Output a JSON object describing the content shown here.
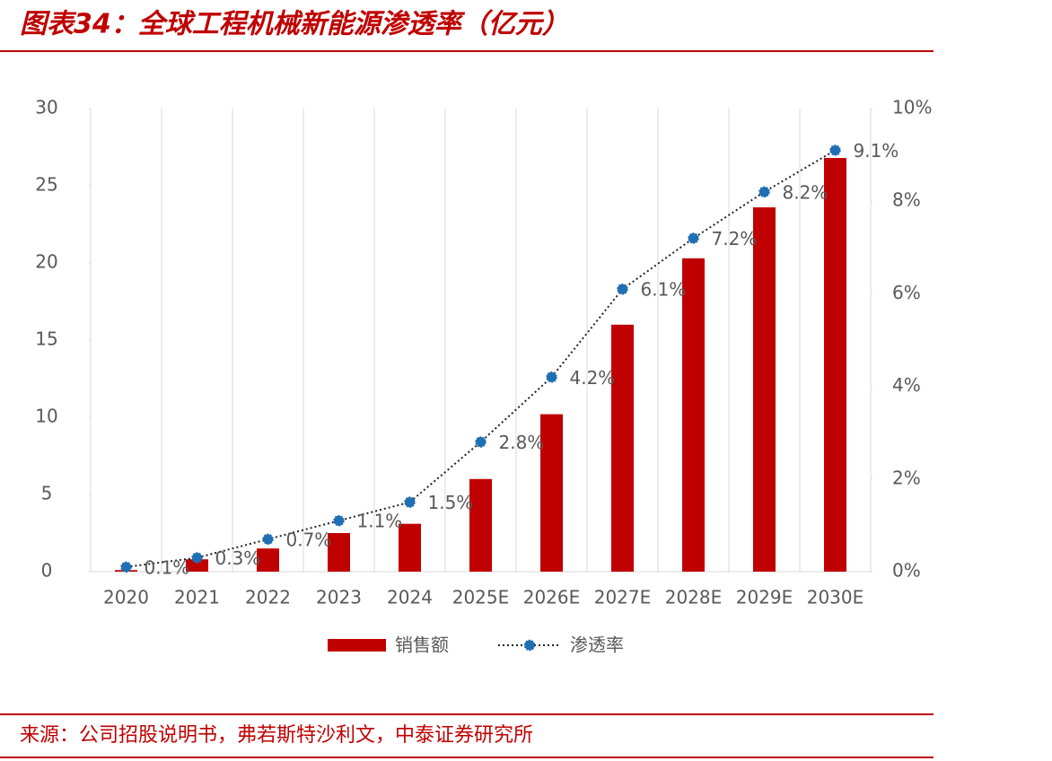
{
  "title": "图表34：全球工程机械新能源渗透率（亿元）",
  "source": "来源：公司招股说明书，弗若斯特沙利文，中泰证券研究所",
  "chart_data": {
    "type": "bar-line",
    "categories": [
      "2020",
      "2021",
      "2022",
      "2023",
      "2024",
      "2025E",
      "2026E",
      "2027E",
      "2028E",
      "2029E",
      "2030E"
    ],
    "series": [
      {
        "name": "销售额",
        "type": "bar",
        "color": "#c00000",
        "values": [
          0.1,
          0.8,
          1.5,
          2.5,
          3.1,
          6.0,
          10.2,
          16.0,
          20.3,
          23.6,
          26.8
        ]
      },
      {
        "name": "渗透率",
        "type": "line",
        "axis": "y2",
        "color": "#1f6fb5",
        "values": [
          0.1,
          0.3,
          0.7,
          1.1,
          1.5,
          2.8,
          4.2,
          6.1,
          7.2,
          8.2,
          9.1
        ],
        "value_labels": [
          "0.1%",
          "0.3%",
          "0.7%",
          "1.1%",
          "1.5%",
          "2.8%",
          "4.2%",
          "6.1%",
          "7.2%",
          "8.2%",
          "9.1%"
        ]
      }
    ],
    "ylim": [
      0,
      30
    ],
    "yticks": [
      0,
      5,
      10,
      15,
      20,
      25,
      30
    ],
    "y2lim": [
      0,
      10
    ],
    "y2ticks": [
      {
        "value": 0,
        "label": "0%"
      },
      {
        "value": 2,
        "label": "2%"
      },
      {
        "value": 4,
        "label": "4%"
      },
      {
        "value": 6,
        "label": "6%"
      },
      {
        "value": 8,
        "label": "8%"
      },
      {
        "value": 10,
        "label": "10%"
      }
    ]
  }
}
